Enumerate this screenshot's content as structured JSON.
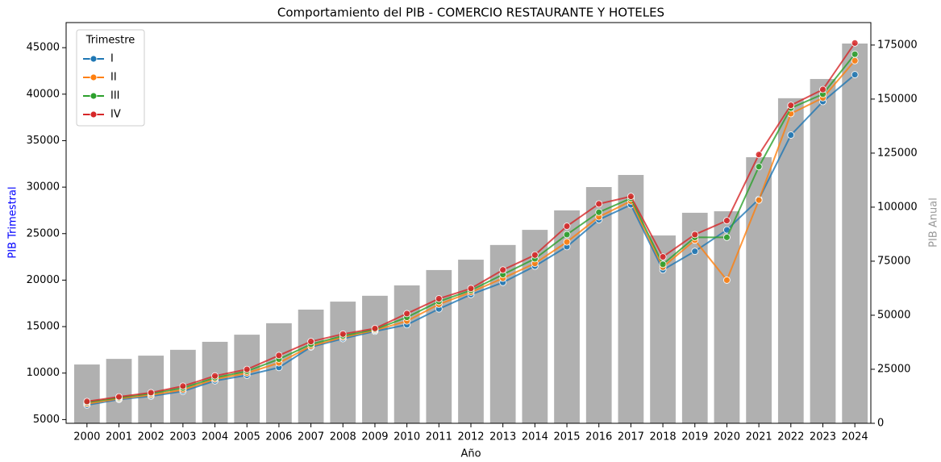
{
  "chart_data": {
    "type": "combo",
    "title": "Comportamiento del PIB - COMERCIO RESTAURANTE Y HOTELES",
    "x_label": "Año",
    "y_label": "PIB Trimestral",
    "y2_label": "PIB Anual",
    "legend_title": "Trimestre",
    "legend": "upper left",
    "categories": [
      "2000",
      "2001",
      "2002",
      "2003",
      "2004",
      "2005",
      "2006",
      "2007",
      "2008",
      "2009",
      "2010",
      "2011",
      "2012",
      "2013",
      "2014",
      "2015",
      "2016",
      "2017",
      "2018",
      "2019",
      "2020",
      "2021",
      "2022",
      "2023",
      "2024"
    ],
    "bar_series": {
      "color": "#b0b0b0",
      "axis": "y2",
      "values": [
        27200,
        29800,
        31300,
        34000,
        37700,
        41000,
        46300,
        52600,
        56300,
        59000,
        63800,
        70900,
        75700,
        82500,
        89500,
        98500,
        109300,
        114900,
        86900,
        97400,
        98100,
        123100,
        150400,
        159300,
        175700
      ]
    },
    "series": [
      {
        "name": "I",
        "color": "#1f77b4",
        "values": [
          6560,
          7170,
          7520,
          8040,
          9170,
          9770,
          10600,
          12800,
          13700,
          14500,
          15200,
          16900,
          18450,
          19750,
          21500,
          23600,
          26500,
          28100,
          21100,
          23100,
          25400,
          28700,
          35600,
          39200,
          42100
        ]
      },
      {
        "name": "II",
        "color": "#ff7f0e",
        "values": [
          6700,
          7250,
          7650,
          8200,
          9350,
          10000,
          11100,
          12900,
          13850,
          14600,
          15600,
          17400,
          18700,
          20200,
          21800,
          24100,
          26800,
          28500,
          21400,
          24300,
          20000,
          28600,
          37900,
          39600,
          43600
        ]
      },
      {
        "name": "III",
        "color": "#2ca02c",
        "values": [
          6850,
          7350,
          7800,
          8400,
          9500,
          10200,
          11500,
          13100,
          14000,
          14700,
          16000,
          17700,
          18900,
          20600,
          22300,
          24900,
          27300,
          28800,
          21700,
          24600,
          24600,
          32200,
          38500,
          40000,
          44300
        ]
      },
      {
        "name": "IV",
        "color": "#d62728",
        "values": [
          6950,
          7450,
          7900,
          8600,
          9700,
          10400,
          11900,
          13400,
          14200,
          14800,
          16400,
          18000,
          19100,
          21100,
          22700,
          25800,
          28200,
          29000,
          22500,
          24900,
          26400,
          33500,
          38800,
          40500,
          45500
        ]
      }
    ],
    "ylim": [
      4600,
      47700
    ],
    "yticks": [
      5000,
      10000,
      15000,
      20000,
      25000,
      30000,
      35000,
      40000,
      45000
    ],
    "y2lim": [
      0,
      185400
    ],
    "y2ticks": [
      0,
      25000,
      50000,
      75000,
      100000,
      125000,
      150000,
      175000
    ]
  }
}
